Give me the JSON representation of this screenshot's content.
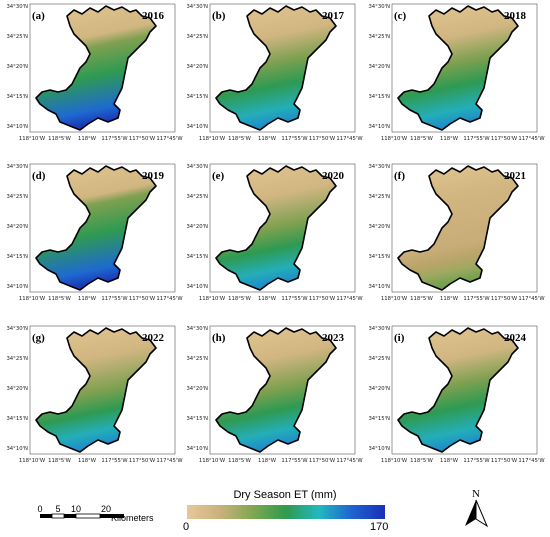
{
  "panels": [
    {
      "label": "(a)",
      "year": "2016",
      "wet": 0.85
    },
    {
      "label": "(b)",
      "year": "2017",
      "wet": 0.55
    },
    {
      "label": "(c)",
      "year": "2018",
      "wet": 0.55
    },
    {
      "label": "(d)",
      "year": "2019",
      "wet": 0.9
    },
    {
      "label": "(e)",
      "year": "2020",
      "wet": 0.45
    },
    {
      "label": "(f)",
      "year": "2021",
      "wet": 0.12
    },
    {
      "label": "(g)",
      "year": "2022",
      "wet": 0.4
    },
    {
      "label": "(h)",
      "year": "2023",
      "wet": 0.45
    },
    {
      "label": "(i)",
      "year": "2024",
      "wet": 0.55
    }
  ],
  "axes": {
    "lat_ticks": [
      "34°30'N",
      "34°25'N",
      "34°20'N",
      "34°15'N",
      "34°10'N"
    ],
    "lon_ticks": [
      "118°10'W",
      "118°5'W",
      "118°W",
      "117°55'W",
      "117°50'W",
      "117°45'W"
    ]
  },
  "legend": {
    "title": "Dry Season ET (mm)",
    "min": "0",
    "max": "170",
    "colors": [
      "#e8c79a",
      "#c9b27a",
      "#7fa74f",
      "#2f9a4e",
      "#22b8c0",
      "#1e63cf",
      "#1a2fb8"
    ]
  },
  "scalebar": {
    "ticks": [
      "0",
      "5",
      "10",
      "20"
    ],
    "unit": "Kilometers"
  },
  "north": "N"
}
